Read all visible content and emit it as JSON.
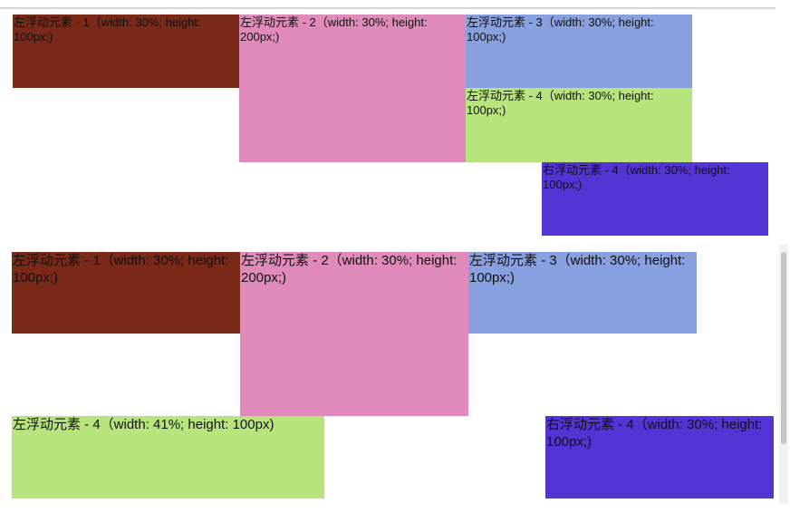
{
  "demo_top": {
    "boxes": [
      {
        "label": "左浮动元素 - 1（width: 30%; height: 100px;)"
      },
      {
        "label": "左浮动元素 - 2（width: 30%; height: 200px;)"
      },
      {
        "label": "左浮动元素 - 3（width: 30%; height: 100px;)"
      },
      {
        "label": "左浮动元素 - 4（width: 30%; height: 100px;)"
      },
      {
        "label": "右浮动元素 - 4（width: 30%; height: 100px;)"
      }
    ]
  },
  "demo_bottom": {
    "boxes": [
      {
        "label": "左浮动元素 - 1（width: 30%; height: 100px;)"
      },
      {
        "label": "左浮动元素 - 2（width: 30%; height: 200px;)"
      },
      {
        "label": "左浮动元素 - 3（width: 30%; height: 100px;)"
      },
      {
        "label": "左浮动元素 - 4（width: 41%; height: 100px)"
      },
      {
        "label": "右浮动元素 - 4（width: 30%; height: 100px;)"
      }
    ]
  },
  "colors": {
    "dark_red": "#7b2a1a",
    "pink": "#e08abb",
    "blue": "#88a0df",
    "green": "#b8e47d",
    "purple": "#5534d6"
  }
}
